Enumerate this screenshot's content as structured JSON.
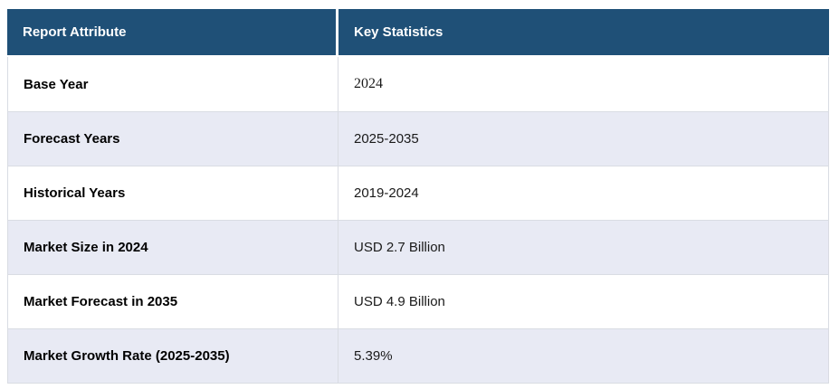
{
  "table": {
    "columns": [
      {
        "label": "Report Attribute"
      },
      {
        "label": "Key Statistics"
      }
    ],
    "rows": [
      {
        "attribute": "Base Year",
        "value": "2024"
      },
      {
        "attribute": "Forecast Years",
        "value": "2025-2035"
      },
      {
        "attribute": "Historical Years",
        "value": "2019-2024"
      },
      {
        "attribute": "Market Size in 2024",
        "value": "USD 2.7 Billion"
      },
      {
        "attribute": "Market Forecast in 2035",
        "value": "USD 4.9 Billion"
      },
      {
        "attribute": "Market Growth Rate (2025-2035)",
        "value": "5.39%"
      }
    ]
  },
  "colors": {
    "header_bg": "#1F5077",
    "header_text": "#FFFFFF",
    "row_alt_bg": "#E8EAF4",
    "row_bg": "#FFFFFF",
    "border": "#D9DCE3",
    "label_text": "#000000",
    "value_text": "#1A1A1A"
  },
  "chart_data": {
    "type": "table",
    "title": "",
    "columns": [
      "Report Attribute",
      "Key Statistics"
    ],
    "rows": [
      [
        "Base Year",
        "2024"
      ],
      [
        "Forecast Years",
        "2025-2035"
      ],
      [
        "Historical Years",
        "2019-2024"
      ],
      [
        "Market Size in 2024",
        "USD 2.7 Billion"
      ],
      [
        "Market Forecast in 2035",
        "USD 4.9 Billion"
      ],
      [
        "Market Growth Rate (2025-2035)",
        "5.39%"
      ]
    ],
    "layout": {
      "header_style": "dark-blue-bold-white",
      "striping": "even-rows-lavender",
      "legend_position": "none",
      "grid": "light-gray-cell-borders"
    },
    "base_year": 2024,
    "forecast_years_start": 2025,
    "forecast_years_end": 2035,
    "historical_years_start": 2019,
    "historical_years_end": 2024,
    "market_size_2024_usd_billion": 2.7,
    "market_forecast_2035_usd_billion": 4.9,
    "market_growth_rate_pct": 5.39
  }
}
